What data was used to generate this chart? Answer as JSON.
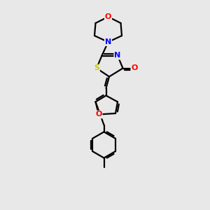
{
  "bg_color": "#e8e8e8",
  "atom_colors": {
    "C": "#000000",
    "N": "#0000ff",
    "O": "#ff0000",
    "S": "#cccc00"
  },
  "bond_color": "#000000",
  "bond_width": 1.6,
  "figure_size": [
    3.0,
    3.0
  ],
  "dpi": 100,
  "xlim": [
    0,
    10
  ],
  "ylim": [
    0,
    10
  ]
}
